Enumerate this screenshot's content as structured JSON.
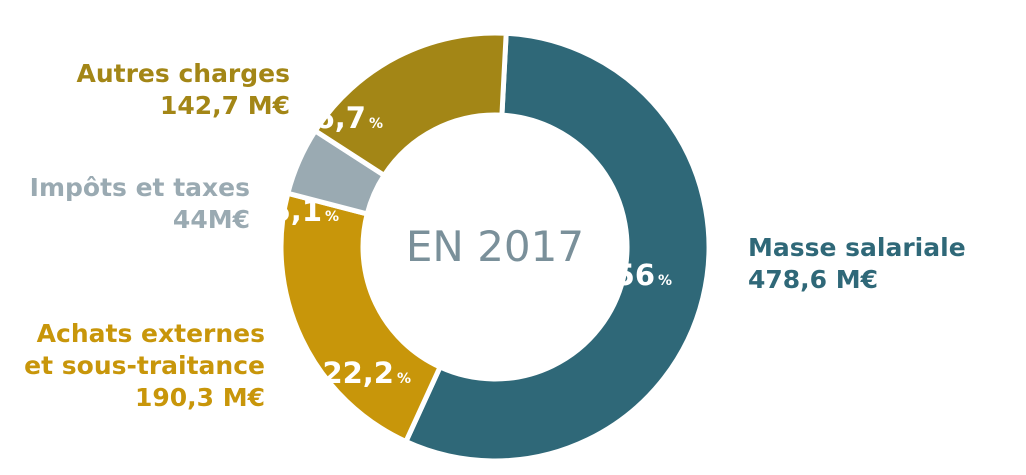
{
  "chart_data": {
    "type": "pie",
    "variant": "donut",
    "center_text": "EN 2017",
    "slices": [
      {
        "name": "Masse salariale",
        "name_lines": [
          "Masse salariale"
        ],
        "amount": "478,6 M€",
        "percent": 56.0,
        "percent_label": "56",
        "color": "#2f6878"
      },
      {
        "name": "Achats externes et sous-traitance",
        "name_lines": [
          "Achats externes",
          "et sous-traitance"
        ],
        "amount": "190,3 M€",
        "percent": 22.2,
        "percent_label": "22,2",
        "color": "#c8960a"
      },
      {
        "name": "Impôts et taxes",
        "name_lines": [
          "Impôts et taxes"
        ],
        "amount": "44M€",
        "percent": 5.1,
        "percent_label": "5,1",
        "color": "#9aaab2"
      },
      {
        "name": "Autres charges",
        "name_lines": [
          "Autres charges"
        ],
        "amount": "142,7 M€",
        "percent": 16.7,
        "percent_label": "16,7",
        "color": "#a38616"
      }
    ],
    "percent_symbol": "%",
    "center_text_color": "#7a909a"
  }
}
